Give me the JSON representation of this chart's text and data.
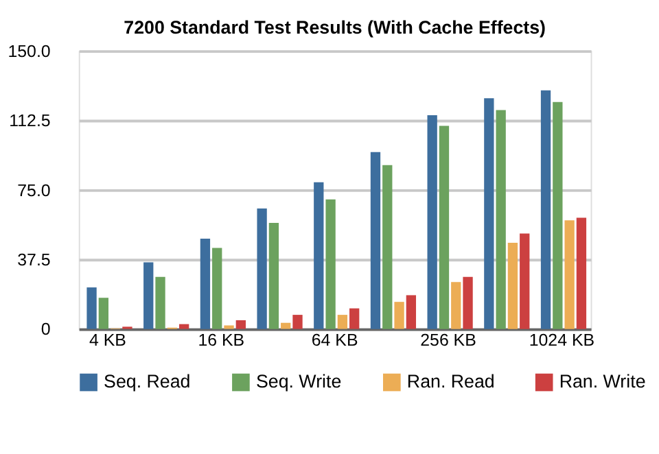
{
  "chart_data": {
    "type": "bar",
    "title": "7200 Standard Test Results (With Cache Effects)",
    "categories": [
      "4 KB",
      null,
      "16 KB",
      null,
      "64 KB",
      null,
      "256 KB",
      null,
      "1024 KB"
    ],
    "series": [
      {
        "name": "Seq. Read",
        "color": "#3d6e9e",
        "values": [
          22.4,
          35.9,
          48.7,
          65.0,
          79.1,
          95.4,
          115.3,
          124.5,
          128.7
        ]
      },
      {
        "name": "Seq. Write",
        "color": "#6ca25e",
        "values": [
          16.8,
          28.1,
          43.7,
          57.2,
          69.9,
          88.4,
          109.6,
          118.1,
          122.4
        ]
      },
      {
        "name": "Ran. Read",
        "color": "#ecad55",
        "values": [
          0.3,
          0.7,
          1.9,
          3.3,
          7.6,
          14.6,
          25.3,
          46.5,
          58.6
        ]
      },
      {
        "name": "Ran. Write",
        "color": "#cc4040",
        "values": [
          1.2,
          2.6,
          4.7,
          7.6,
          11.1,
          18.2,
          28.1,
          51.5,
          60.0
        ]
      }
    ],
    "ylim": [
      0,
      150
    ],
    "yticks": [
      0,
      {
        "value": 37.5,
        "label": "37.5"
      },
      {
        "value": 75,
        "label": "75.0"
      },
      {
        "value": 112.5,
        "label": "112.5"
      },
      {
        "value": 150,
        "label": "150.0"
      }
    ],
    "grid": "y",
    "legend": "bottom"
  }
}
